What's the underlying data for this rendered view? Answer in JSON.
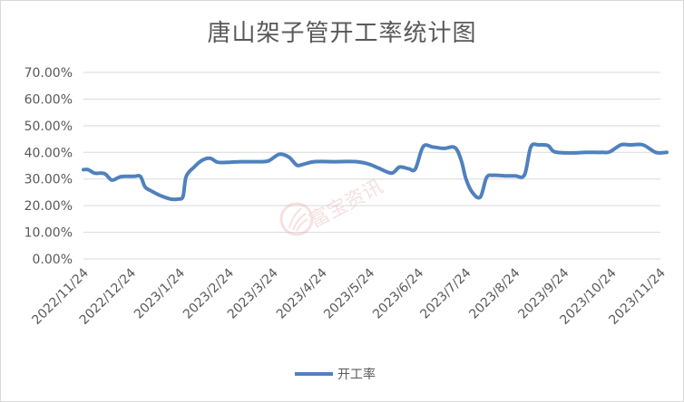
{
  "chart_data": {
    "type": "line",
    "title": "唐山架子管开工率统计图",
    "xlabel": "",
    "ylabel": "",
    "ylim": [
      0,
      0.7
    ],
    "yticks": [
      "0.00%",
      "10.00%",
      "20.00%",
      "30.00%",
      "40.00%",
      "50.00%",
      "60.00%",
      "70.00%"
    ],
    "xticks": [
      "2022/11/24",
      "2022/12/24",
      "2023/1/24",
      "2023/2/24",
      "2023/3/24",
      "2023/4/24",
      "2023/5/24",
      "2023/6/24",
      "2023/7/24",
      "2023/8/24",
      "2023/9/24",
      "2023/10/24",
      "2023/11/24"
    ],
    "grid": true,
    "legend_position": "bottom",
    "series": [
      {
        "name": "开工率",
        "color": "#4f81bd",
        "points": [
          [
            "2022/11/24",
            0.335
          ],
          [
            "2022/11/27",
            0.335
          ],
          [
            "2022/12/1",
            0.322
          ],
          [
            "2022/12/5",
            0.322
          ],
          [
            "2022/12/8",
            0.318
          ],
          [
            "2022/12/12",
            0.296
          ],
          [
            "2022/12/17",
            0.308
          ],
          [
            "2022/12/20",
            0.31
          ],
          [
            "2022/12/26",
            0.31
          ],
          [
            "2022/12/30",
            0.31
          ],
          [
            "2023/1/2",
            0.27
          ],
          [
            "2023/1/6",
            0.255
          ],
          [
            "2023/1/12",
            0.237
          ],
          [
            "2023/1/18",
            0.225
          ],
          [
            "2023/1/23",
            0.225
          ],
          [
            "2023/1/26",
            0.235
          ],
          [
            "2023/1/28",
            0.31
          ],
          [
            "2023/2/2",
            0.345
          ],
          [
            "2023/2/7",
            0.37
          ],
          [
            "2023/2/12",
            0.378
          ],
          [
            "2023/2/17",
            0.363
          ],
          [
            "2023/2/24",
            0.363
          ],
          [
            "2023/3/4",
            0.365
          ],
          [
            "2023/3/14",
            0.365
          ],
          [
            "2023/3/21",
            0.368
          ],
          [
            "2023/3/28",
            0.393
          ],
          [
            "2023/4/3",
            0.382
          ],
          [
            "2023/4/8",
            0.352
          ],
          [
            "2023/4/12",
            0.355
          ],
          [
            "2023/4/19",
            0.365
          ],
          [
            "2023/5/2",
            0.365
          ],
          [
            "2023/5/16",
            0.365
          ],
          [
            "2023/5/24",
            0.355
          ],
          [
            "2023/5/30",
            0.34
          ],
          [
            "2023/6/7",
            0.322
          ],
          [
            "2023/6/12",
            0.345
          ],
          [
            "2023/6/18",
            0.338
          ],
          [
            "2023/6/22",
            0.338
          ],
          [
            "2023/6/27",
            0.422
          ],
          [
            "2023/7/3",
            0.42
          ],
          [
            "2023/7/10",
            0.415
          ],
          [
            "2023/7/17",
            0.418
          ],
          [
            "2023/7/21",
            0.37
          ],
          [
            "2023/7/24",
            0.3
          ],
          [
            "2023/7/28",
            0.25
          ],
          [
            "2023/8/2",
            0.232
          ],
          [
            "2023/8/6",
            0.305
          ],
          [
            "2023/8/10",
            0.314
          ],
          [
            "2023/8/18",
            0.312
          ],
          [
            "2023/8/24",
            0.312
          ],
          [
            "2023/8/30",
            0.315
          ],
          [
            "2023/9/3",
            0.42
          ],
          [
            "2023/9/8",
            0.428
          ],
          [
            "2023/9/14",
            0.425
          ],
          [
            "2023/9/18",
            0.402
          ],
          [
            "2023/9/28",
            0.398
          ],
          [
            "2023/10/8",
            0.4
          ],
          [
            "2023/10/18",
            0.4
          ],
          [
            "2023/10/23",
            0.402
          ],
          [
            "2023/10/30",
            0.428
          ],
          [
            "2023/11/5",
            0.428
          ],
          [
            "2023/11/13",
            0.428
          ],
          [
            "2023/11/21",
            0.4
          ],
          [
            "2023/11/28",
            0.4
          ]
        ]
      }
    ]
  },
  "watermark": {
    "text": "富宝资讯"
  }
}
